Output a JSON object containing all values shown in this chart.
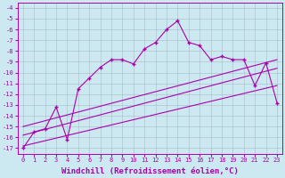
{
  "xlabel": "Windchill (Refroidissement éolien,°C)",
  "bg_color": "#cce8f0",
  "grid_color": "#aabbcc",
  "line_color": "#aa00aa",
  "xlim": [
    -0.5,
    23.5
  ],
  "ylim": [
    -17.5,
    -3.5
  ],
  "xticks": [
    0,
    1,
    2,
    3,
    4,
    5,
    6,
    7,
    8,
    9,
    10,
    11,
    12,
    13,
    14,
    15,
    16,
    17,
    18,
    19,
    20,
    21,
    22,
    23
  ],
  "yticks": [
    -17,
    -16,
    -15,
    -14,
    -13,
    -12,
    -11,
    -10,
    -9,
    -8,
    -7,
    -6,
    -5,
    -4
  ],
  "main_x": [
    0,
    1,
    2,
    3,
    4,
    5,
    6,
    7,
    8,
    9,
    10,
    11,
    12,
    13,
    14,
    15,
    16,
    17,
    18,
    19,
    20,
    21,
    22,
    23
  ],
  "main_y": [
    -17.0,
    -15.5,
    -15.2,
    -13.2,
    -16.2,
    -11.5,
    -10.5,
    -9.5,
    -8.8,
    -8.8,
    -9.2,
    -7.8,
    -7.2,
    -6.0,
    -5.2,
    -7.2,
    -7.5,
    -8.8,
    -8.5,
    -8.8,
    -8.8,
    -11.2,
    -9.1,
    -12.8
  ],
  "line2_x": [
    0,
    23
  ],
  "line2_y": [
    -15.0,
    -8.8
  ],
  "line3_x": [
    0,
    23
  ],
  "line3_y": [
    -15.8,
    -9.6
  ],
  "line4_x": [
    0,
    23
  ],
  "line4_y": [
    -16.8,
    -11.2
  ],
  "marker": "+",
  "markersize": 3,
  "linewidth": 0.8,
  "tick_fontsize": 5,
  "label_fontsize": 6.5
}
